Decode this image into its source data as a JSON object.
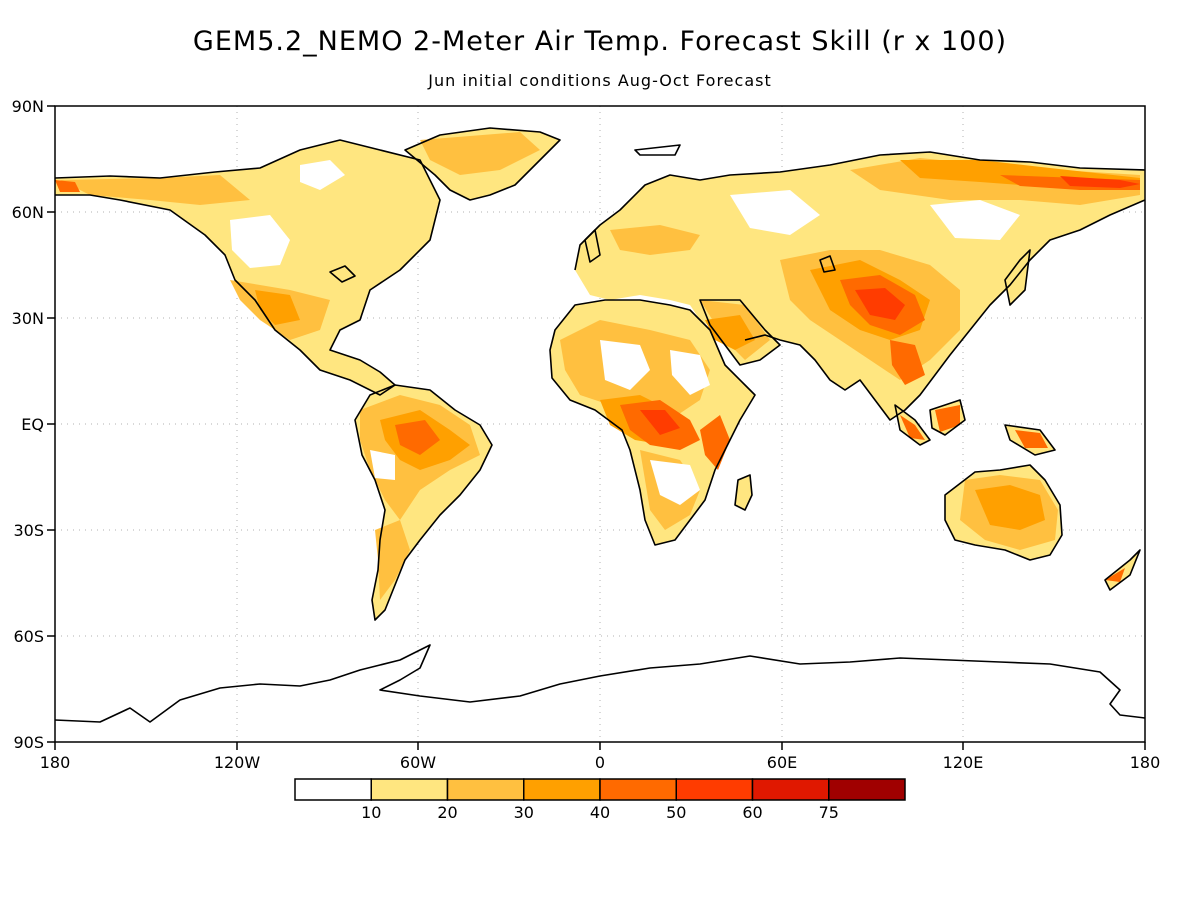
{
  "title": "GEM5.2_NEMO 2-Meter Air Temp. Forecast Skill (r x 100)",
  "subtitle": "Jun initial conditions  Aug-Oct Forecast",
  "lat_ticks": [
    "90N",
    "60N",
    "30N",
    "EQ",
    "30S",
    "60S",
    "90S"
  ],
  "lon_ticks": [
    "180",
    "120W",
    "60W",
    "0",
    "60E",
    "120E",
    "180"
  ],
  "colorbar": {
    "colors": [
      "#ffffff",
      "#ffe680",
      "#ffc040",
      "#ffa000",
      "#ff6a00",
      "#ff3c00",
      "#e01800",
      "#a00000"
    ],
    "labels": [
      "10",
      "20",
      "30",
      "40",
      "50",
      "60",
      "75"
    ]
  }
}
